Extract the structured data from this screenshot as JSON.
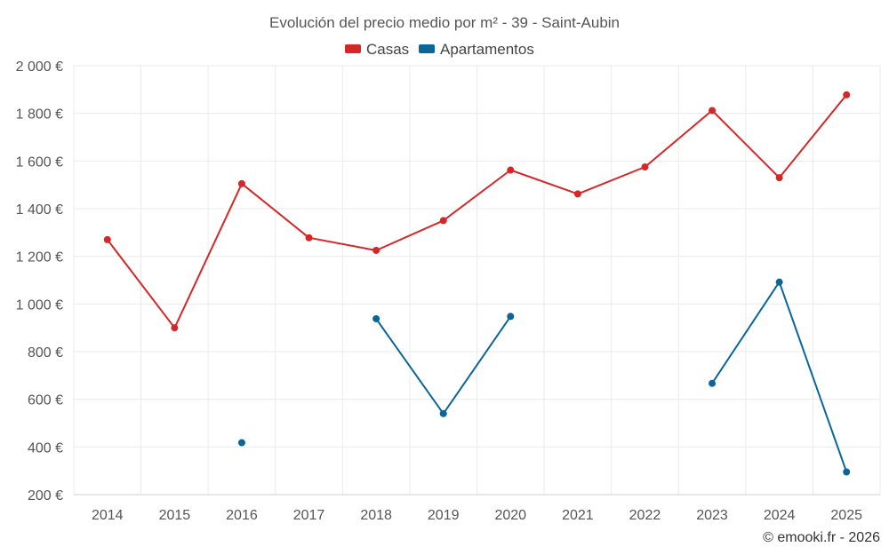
{
  "chart_data": {
    "type": "line",
    "title": "Evolución del precio medio por m² - 39 - Saint-Aubin",
    "categories": [
      "2014",
      "2015",
      "2016",
      "2017",
      "2018",
      "2019",
      "2020",
      "2021",
      "2022",
      "2023",
      "2024",
      "2025"
    ],
    "ylim": [
      200,
      2000
    ],
    "yticks": [
      200,
      400,
      600,
      800,
      1000,
      1200,
      1400,
      1600,
      1800,
      2000
    ],
    "ytick_labels": [
      "200 €",
      "400 €",
      "600 €",
      "800 €",
      "1 000 €",
      "1 200 €",
      "1 400 €",
      "1 600 €",
      "1 800 €",
      "2 000 €"
    ],
    "grid": true,
    "legend_position": "top-center",
    "series": [
      {
        "name": "Casas",
        "color": "#d62728",
        "values": [
          1270,
          900,
          1505,
          1278,
          1225,
          1350,
          1562,
          1462,
          1575,
          1812,
          1530,
          1878
        ]
      },
      {
        "name": "Apartamentos",
        "color": "#0a6699",
        "values": [
          null,
          null,
          418,
          null,
          938,
          540,
          948,
          null,
          null,
          667,
          1092,
          295
        ]
      }
    ]
  },
  "credit": "© emooki.fr - 2026"
}
